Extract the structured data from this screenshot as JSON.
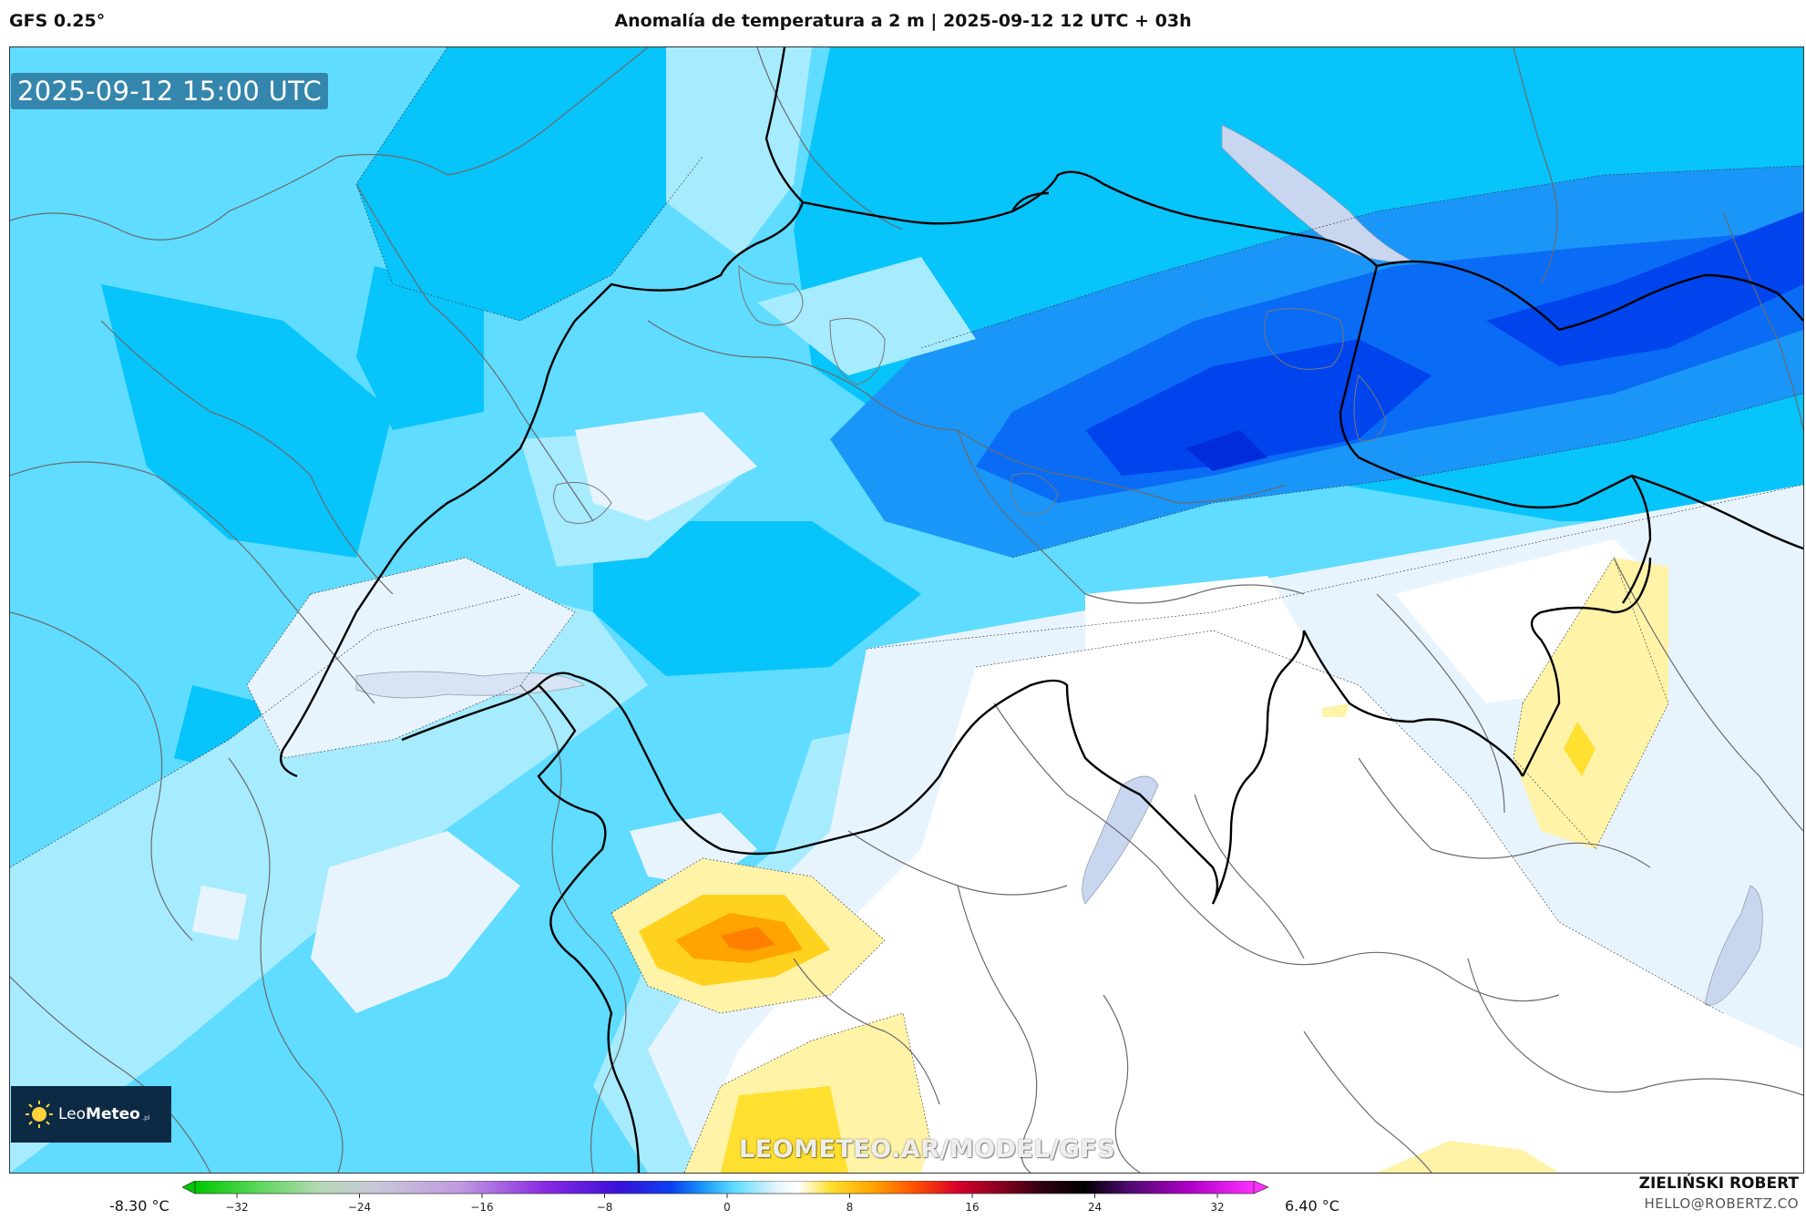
{
  "header": {
    "model": "GFS 0.25°",
    "title": "Anomalía de temperatura a 2 m | 2025-09-12 12 UTC + 03h"
  },
  "map": {
    "valid_time": "2025-09-12 15:00 UTC",
    "watermark": "LEOMETEO.AR/MODEL/GFS",
    "logo": {
      "brand_light": "Leo",
      "brand_bold": "Meteo",
      "suffix": ".pl",
      "icon": "sun-icon"
    }
  },
  "legend": {
    "min_label": "-8.30 °C",
    "max_label": "6.40 °C",
    "ticks": [
      "−32",
      "−24",
      "−16",
      "−8",
      "0",
      "8",
      "16",
      "24",
      "32"
    ],
    "colors": {
      "deep_blue": "#0044ee",
      "blue": "#0a6cf5",
      "mid_blue": "#1a96f8",
      "cyan": "#07c4fb",
      "light_cyan": "#5fdcff",
      "pale_cyan": "#a7ebff",
      "near_white": "#e8f4fd",
      "white": "#ffffff",
      "pale_yellow": "#fff3a8",
      "yellow": "#ffe030",
      "orange": "#ffa400"
    }
  },
  "footer": {
    "author": "ZIELIŃSKI ROBERT",
    "email": "HELLO@ROBERTZ.CO"
  }
}
